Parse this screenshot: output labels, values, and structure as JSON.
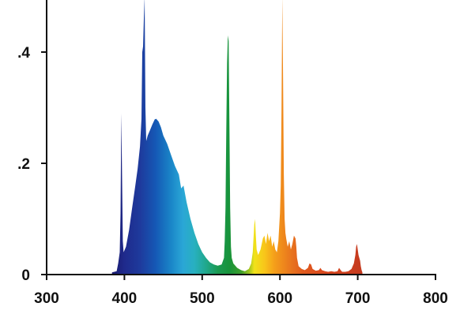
{
  "chart_data": {
    "type": "area",
    "title": "",
    "xlabel": "",
    "ylabel": "",
    "xlim": [
      300,
      800
    ],
    "ylim": [
      0,
      0.5
    ],
    "x_ticks": [
      {
        "value": 300,
        "label": "300"
      },
      {
        "value": 400,
        "label": "400"
      },
      {
        "value": 500,
        "label": "500"
      },
      {
        "value": 600,
        "label": "600"
      },
      {
        "value": 700,
        "label": "700"
      },
      {
        "value": 800,
        "label": "800"
      }
    ],
    "y_ticks": [
      {
        "value": 0,
        "label": "0"
      },
      {
        "value": 0.2,
        "label": ".2"
      },
      {
        "value": 0.4,
        "label": ".4"
      }
    ],
    "grid": false,
    "fill": "rainbow-by-wavelength",
    "series": [
      {
        "x": [
          384,
          390,
          392,
          394,
          395,
          396,
          397,
          398,
          399,
          402,
          406,
          410,
          414,
          417,
          420,
          422,
          423,
          424,
          425,
          426,
          427,
          428,
          430,
          433,
          436,
          439,
          441,
          444,
          447,
          450,
          455,
          460,
          465,
          470,
          473,
          476,
          480,
          485,
          490,
          495,
          500,
          505,
          510,
          515,
          520,
          525,
          528,
          529,
          530,
          531,
          532,
          533,
          534,
          535,
          536,
          537,
          538,
          540,
          545,
          550,
          555,
          560,
          563,
          565,
          567,
          568,
          569,
          570,
          572,
          575,
          578,
          580,
          582,
          584,
          586,
          588,
          590,
          592,
          594,
          596,
          598,
          600,
          601,
          602,
          603,
          604,
          605,
          606,
          607,
          608,
          610,
          612,
          614,
          616,
          618,
          620,
          621,
          622,
          624,
          628,
          632,
          636,
          638,
          640,
          642,
          646,
          650,
          652,
          654,
          658,
          662,
          666,
          670,
          674,
          676,
          678,
          680,
          684,
          688,
          692,
          695,
          697,
          698,
          699,
          700,
          701,
          702,
          703,
          704,
          705,
          706
        ],
        "y": [
          0.004,
          0.006,
          0.02,
          0.04,
          0.11,
          0.29,
          0.18,
          0.06,
          0.04,
          0.05,
          0.08,
          0.12,
          0.16,
          0.19,
          0.23,
          0.28,
          0.4,
          0.41,
          0.46,
          0.5,
          0.3,
          0.24,
          0.25,
          0.26,
          0.27,
          0.279,
          0.28,
          0.275,
          0.265,
          0.25,
          0.235,
          0.215,
          0.195,
          0.18,
          0.155,
          0.16,
          0.13,
          0.1,
          0.075,
          0.055,
          0.04,
          0.03,
          0.022,
          0.018,
          0.016,
          0.018,
          0.03,
          0.06,
          0.12,
          0.26,
          0.38,
          0.43,
          0.42,
          0.28,
          0.12,
          0.05,
          0.03,
          0.02,
          0.012,
          0.008,
          0.006,
          0.01,
          0.02,
          0.04,
          0.09,
          0.1,
          0.07,
          0.045,
          0.035,
          0.045,
          0.065,
          0.07,
          0.055,
          0.075,
          0.06,
          0.07,
          0.05,
          0.06,
          0.045,
          0.04,
          0.06,
          0.11,
          0.16,
          0.3,
          0.5,
          0.36,
          0.18,
          0.1,
          0.075,
          0.065,
          0.05,
          0.06,
          0.045,
          0.055,
          0.07,
          0.065,
          0.05,
          0.03,
          0.015,
          0.01,
          0.008,
          0.012,
          0.02,
          0.018,
          0.01,
          0.007,
          0.008,
          0.012,
          0.008,
          0.006,
          0.005,
          0.006,
          0.005,
          0.006,
          0.012,
          0.008,
          0.005,
          0.005,
          0.006,
          0.01,
          0.02,
          0.035,
          0.05,
          0.055,
          0.045,
          0.035,
          0.03,
          0.025,
          0.015,
          0.008,
          0.004
        ]
      }
    ]
  }
}
